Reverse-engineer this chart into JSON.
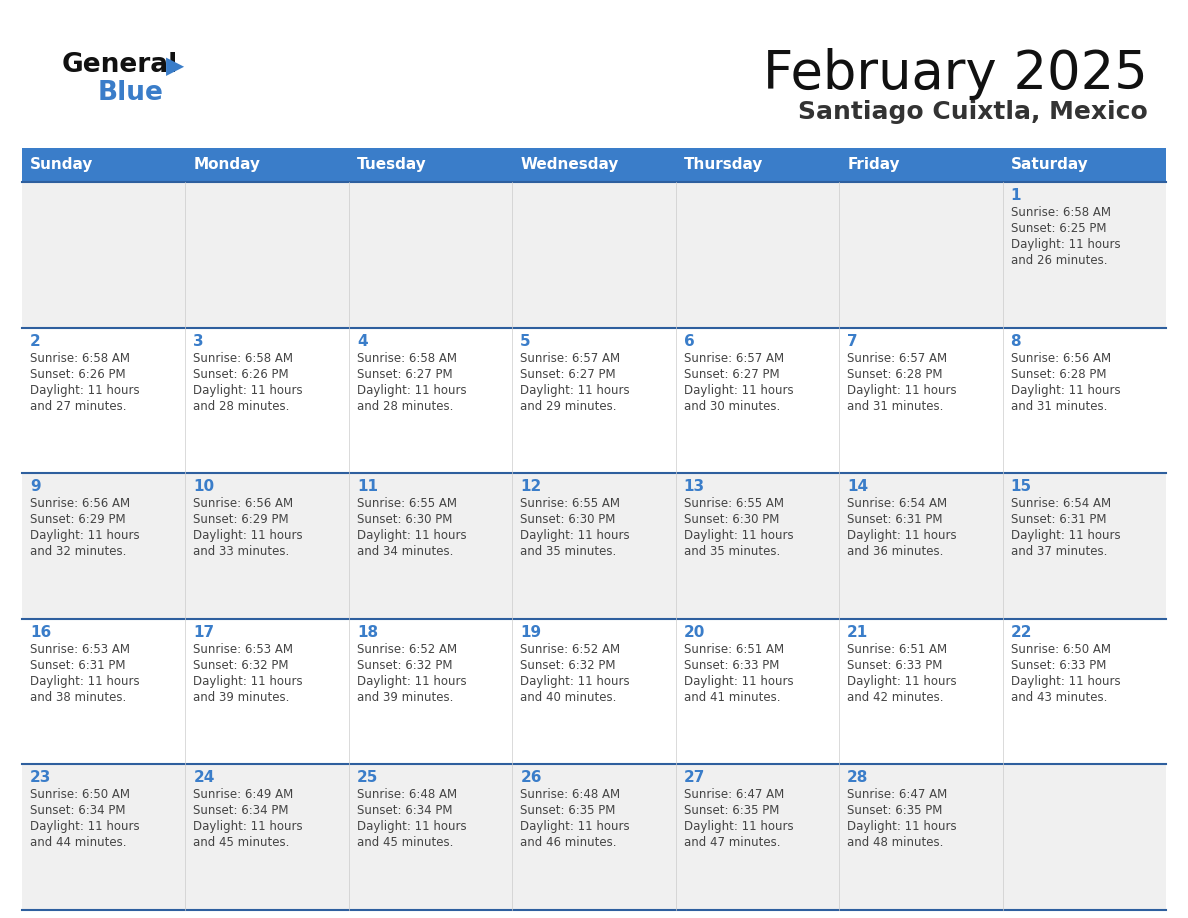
{
  "title": "February 2025",
  "subtitle": "Santiago Cuixtla, Mexico",
  "header_color": "#3A7DC9",
  "header_text_color": "#FFFFFF",
  "bg_color": "#FFFFFF",
  "cell_bg_light": "#F0F0F0",
  "cell_bg_white": "#FFFFFF",
  "border_color": "#2E5F9E",
  "day_names": [
    "Sunday",
    "Monday",
    "Tuesday",
    "Wednesday",
    "Thursday",
    "Friday",
    "Saturday"
  ],
  "date_color": "#3A7DC9",
  "text_color": "#444444",
  "calendar": [
    [
      null,
      null,
      null,
      null,
      null,
      null,
      1
    ],
    [
      2,
      3,
      4,
      5,
      6,
      7,
      8
    ],
    [
      9,
      10,
      11,
      12,
      13,
      14,
      15
    ],
    [
      16,
      17,
      18,
      19,
      20,
      21,
      22
    ],
    [
      23,
      24,
      25,
      26,
      27,
      28,
      null
    ]
  ],
  "sunrise": {
    "1": "6:58 AM",
    "2": "6:58 AM",
    "3": "6:58 AM",
    "4": "6:58 AM",
    "5": "6:57 AM",
    "6": "6:57 AM",
    "7": "6:57 AM",
    "8": "6:56 AM",
    "9": "6:56 AM",
    "10": "6:56 AM",
    "11": "6:55 AM",
    "12": "6:55 AM",
    "13": "6:55 AM",
    "14": "6:54 AM",
    "15": "6:54 AM",
    "16": "6:53 AM",
    "17": "6:53 AM",
    "18": "6:52 AM",
    "19": "6:52 AM",
    "20": "6:51 AM",
    "21": "6:51 AM",
    "22": "6:50 AM",
    "23": "6:50 AM",
    "24": "6:49 AM",
    "25": "6:48 AM",
    "26": "6:48 AM",
    "27": "6:47 AM",
    "28": "6:47 AM"
  },
  "sunset": {
    "1": "6:25 PM",
    "2": "6:26 PM",
    "3": "6:26 PM",
    "4": "6:27 PM",
    "5": "6:27 PM",
    "6": "6:27 PM",
    "7": "6:28 PM",
    "8": "6:28 PM",
    "9": "6:29 PM",
    "10": "6:29 PM",
    "11": "6:30 PM",
    "12": "6:30 PM",
    "13": "6:30 PM",
    "14": "6:31 PM",
    "15": "6:31 PM",
    "16": "6:31 PM",
    "17": "6:32 PM",
    "18": "6:32 PM",
    "19": "6:32 PM",
    "20": "6:33 PM",
    "21": "6:33 PM",
    "22": "6:33 PM",
    "23": "6:34 PM",
    "24": "6:34 PM",
    "25": "6:34 PM",
    "26": "6:35 PM",
    "27": "6:35 PM",
    "28": "6:35 PM"
  },
  "daylight_hours": {
    "1": 11,
    "2": 11,
    "3": 11,
    "4": 11,
    "5": 11,
    "6": 11,
    "7": 11,
    "8": 11,
    "9": 11,
    "10": 11,
    "11": 11,
    "12": 11,
    "13": 11,
    "14": 11,
    "15": 11,
    "16": 11,
    "17": 11,
    "18": 11,
    "19": 11,
    "20": 11,
    "21": 11,
    "22": 11,
    "23": 11,
    "24": 11,
    "25": 11,
    "26": 11,
    "27": 11,
    "28": 11
  },
  "daylight_minutes": {
    "1": 26,
    "2": 27,
    "3": 28,
    "4": 28,
    "5": 29,
    "6": 30,
    "7": 31,
    "8": 31,
    "9": 32,
    "10": 33,
    "11": 34,
    "12": 35,
    "13": 35,
    "14": 36,
    "15": 37,
    "16": 38,
    "17": 39,
    "18": 39,
    "19": 40,
    "20": 41,
    "21": 42,
    "22": 43,
    "23": 44,
    "24": 45,
    "25": 45,
    "26": 46,
    "27": 47,
    "28": 48
  }
}
